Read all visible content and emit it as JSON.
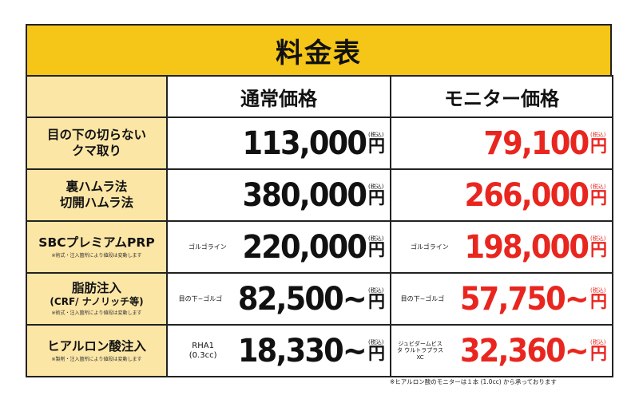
{
  "title": "料金表",
  "headers": {
    "regular": "通常価格",
    "monitor": "モニター価格"
  },
  "tax_label": "(税込)",
  "yen": "円",
  "rows": [
    {
      "label_main": "目の下の切らない",
      "label_main2": "クマ取り",
      "label_sub": "",
      "note": "",
      "regular_prefix": "",
      "regular": "113,000",
      "monitor_prefix": "",
      "monitor": "79,100"
    },
    {
      "label_main": "裏ハムラ法",
      "label_main2": "切開ハムラ法",
      "label_sub": "",
      "note": "",
      "regular_prefix": "",
      "regular": "380,000",
      "monitor_prefix": "",
      "monitor": "266,000"
    },
    {
      "label_main": "SBCプレミアムPRP",
      "label_main2": "",
      "label_sub": "",
      "note": "※術式・注入箇所により値段は変動します",
      "regular_prefix": "ゴルゴライン",
      "regular": "220,000",
      "monitor_prefix": "ゴルゴライン",
      "monitor": "198,000"
    },
    {
      "label_main": "脂肪注入",
      "label_main2": "",
      "label_sub": "(CRF/ ナノリッチ等)",
      "note": "※術式・注入箇所により値段は変動します",
      "regular_prefix": "目の下~ゴルゴ",
      "regular": "82,500~",
      "monitor_prefix": "目の下~ゴルゴ",
      "monitor": "57,750~"
    },
    {
      "label_main": "ヒアルロン酸注入",
      "label_main2": "",
      "label_sub": "",
      "note": "※製剤・注入箇所により値段は変動します",
      "regular_prefix": "RHA1 (0.3cc)",
      "regular": "18,330~",
      "monitor_prefix": "ジュビダームビスタ ウルトラプラスXC",
      "monitor": "32,360~"
    }
  ],
  "footnote": "※ヒアルロン酸のモニターは１本 (1.0cc) から承っております",
  "colors": {
    "header_yellow": "#f5c518",
    "label_bg": "#fbe6a6",
    "monitor_red": "#e8261f"
  }
}
